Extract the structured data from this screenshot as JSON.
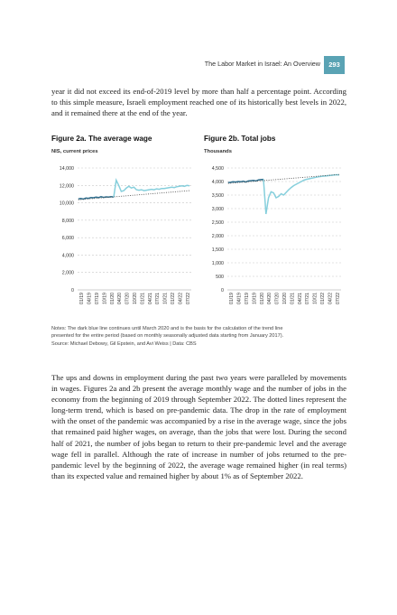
{
  "header": {
    "running_title": "The Labor Market in Israel: An Overview",
    "page_number": "293"
  },
  "paragraph1": "year it did not exceed its end-of-2019 level by more than half a percentage point. According to this simple measure, Israeli employment reached one of its historically best levels in 2022, and it remained there at the end of the year.",
  "figures": {
    "a": {
      "title": "Figure 2a. The average wage",
      "subtitle": "NIS, current prices"
    },
    "b": {
      "title": "Figure 2b. Total jobs",
      "subtitle": "Thousands"
    }
  },
  "chart_data": [
    {
      "type": "line",
      "title": "Figure 2a. The average wage",
      "ylabel": "NIS, current prices",
      "ylim": [
        0,
        14000
      ],
      "yticks": [
        "0",
        "2,000",
        "4,000",
        "6,000",
        "8,000",
        "10,000",
        "12,000",
        "14,000"
      ],
      "x_tick_labels": [
        "01/19",
        "04/19",
        "07/19",
        "10/19",
        "01/20",
        "04/20",
        "07/20",
        "10/20",
        "01/21",
        "04/21",
        "07/21",
        "10/21",
        "01/22",
        "04/22",
        "07/22"
      ],
      "series": [
        {
          "style": "dark-blue-solid",
          "color": "#2f6f8f",
          "values": [
            10450,
            10500,
            10420,
            10550,
            10520,
            10600,
            10580,
            10650,
            10600,
            10700,
            10620,
            10680,
            10650,
            10700,
            10650
          ]
        },
        {
          "style": "light-blue-solid",
          "color": "#86cfdc",
          "values": [
            10650,
            12600,
            12000,
            11300,
            11400,
            11700,
            11900,
            11700,
            11800,
            11500,
            11450,
            11500,
            11400,
            11450,
            11500,
            11550,
            11500,
            11600,
            11550,
            11650,
            11650,
            11700,
            11750,
            11800,
            11750,
            11850,
            11900,
            11950,
            11900,
            12000,
            11950
          ]
        },
        {
          "style": "dotted-trend",
          "color": "#555555",
          "values": [
            10350,
            11400
          ]
        }
      ],
      "grid": "horizontal dashed"
    },
    {
      "type": "line",
      "title": "Figure 2b. Total jobs",
      "ylabel": "Thousands",
      "ylim": [
        0,
        4500
      ],
      "yticks": [
        "0",
        "500",
        "1,000",
        "1,500",
        "2,000",
        "2,500",
        "3,000",
        "3,500",
        "4,000",
        "4,500"
      ],
      "x_tick_labels": [
        "01/19",
        "04/19",
        "07/19",
        "10/19",
        "01/20",
        "04/20",
        "07/20",
        "10/20",
        "01/21",
        "04/21",
        "07/21",
        "10/21",
        "01/22",
        "04/22",
        "07/22"
      ],
      "series": [
        {
          "style": "dark-blue-solid",
          "color": "#2f6f8f",
          "values": [
            3960,
            3970,
            3990,
            3980,
            4000,
            3990,
            4010,
            3980,
            4020,
            4030,
            4040,
            4020,
            4060,
            4070,
            4080
          ]
        },
        {
          "style": "light-blue-solid",
          "color": "#86cfdc",
          "values": [
            4080,
            2800,
            3400,
            3620,
            3580,
            3400,
            3450,
            3550,
            3500,
            3600,
            3700,
            3780,
            3850,
            3900,
            3950,
            4000,
            4050,
            4080,
            4100,
            4120,
            4140,
            4160,
            4180,
            4190,
            4200,
            4210,
            4220,
            4230,
            4240,
            4250,
            4240
          ]
        },
        {
          "style": "dotted-trend",
          "color": "#555555",
          "values": [
            3930,
            4260
          ]
        }
      ],
      "grid": "horizontal dashed"
    }
  ],
  "notes": {
    "line1": "Notes: The dark blue line continues until March 2020 and is the basis for the calculation of the trend line",
    "line2": "presented for the entire period (based on monthly seasonally adjusted data starting from January 2017).",
    "line3": "Source: Michael Debowy, Gil Epstein, and Avi Weiss | Data: CBS"
  },
  "paragraph2": "The ups and downs in employment during the past two years were paralleled by movements in wages. Figures 2a and 2b present the average monthly wage and the number of jobs in the economy from the beginning of 2019 through September 2022. The dotted lines represent the long-term trend, which is based on pre-pandemic data. The drop in the rate of employment with the onset of the pandemic was accompanied by a rise in the average wage, since the jobs that remained paid higher wages, on average, than the jobs that were lost. During the second half of 2021, the number of jobs began to return to their pre-pandemic level and the average wage fell in parallel. Although the rate of increase in number of jobs returned to the pre-pandemic level by the beginning of 2022, the average wage remained higher (in real terms) than its expected value and remained higher by about 1% as of September 2022."
}
